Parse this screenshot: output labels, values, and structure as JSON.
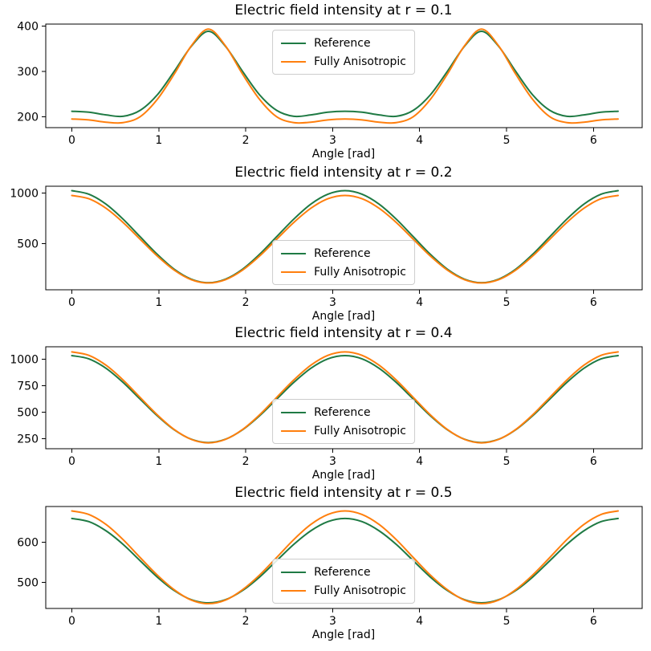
{
  "figure": {
    "background": "#ffffff",
    "xlabel": "Angle [rad]"
  },
  "colors": {
    "reference": "#1f7a44",
    "fully_anisotropic": "#ff7f0e",
    "spine": "#000000",
    "legend_border": "#cccccc"
  },
  "chart_data": [
    {
      "type": "line",
      "title": "Electric field intensity at r = 0.1",
      "xlabel": "Angle [rad]",
      "x": [
        0,
        0.196,
        0.393,
        0.589,
        0.785,
        0.982,
        1.178,
        1.374,
        1.571,
        1.767,
        1.963,
        2.16,
        2.356,
        2.553,
        2.749,
        2.945,
        3.142,
        3.338,
        3.534,
        3.731,
        3.927,
        4.123,
        4.32,
        4.516,
        4.712,
        4.909,
        5.105,
        5.301,
        5.498,
        5.694,
        5.89,
        6.087,
        6.283
      ],
      "series": [
        {
          "name": "Reference",
          "color": "#1f7a44",
          "values": [
            212,
            210,
            204,
            201,
            214,
            248,
            300,
            355,
            388,
            355,
            300,
            248,
            214,
            201,
            204,
            210,
            212,
            210,
            204,
            201,
            214,
            248,
            300,
            355,
            388,
            355,
            300,
            248,
            214,
            201,
            204,
            210,
            212
          ]
        },
        {
          "name": "Fully Anisotropic",
          "color": "#ff7f0e",
          "values": [
            195,
            193,
            188,
            187,
            200,
            238,
            294,
            356,
            393,
            356,
            294,
            238,
            200,
            187,
            188,
            193,
            195,
            193,
            188,
            187,
            200,
            238,
            294,
            356,
            393,
            356,
            294,
            238,
            200,
            187,
            188,
            193,
            195
          ]
        }
      ],
      "xlim": [
        -0.3,
        6.56
      ],
      "ylim": [
        176,
        404
      ],
      "x_ticks": [
        0,
        1,
        2,
        3,
        4,
        5,
        6
      ],
      "y_ticks": [
        200,
        300,
        400
      ],
      "legend_loc": "upper center",
      "grid": false
    },
    {
      "type": "line",
      "title": "Electric field intensity at r = 0.2",
      "xlabel": "Angle [rad]",
      "x": [
        0,
        0.196,
        0.393,
        0.589,
        0.785,
        0.982,
        1.178,
        1.374,
        1.571,
        1.767,
        1.963,
        2.16,
        2.356,
        2.553,
        2.749,
        2.945,
        3.142,
        3.338,
        3.534,
        3.731,
        3.927,
        4.123,
        4.32,
        4.516,
        4.712,
        4.909,
        5.105,
        5.301,
        5.498,
        5.694,
        5.89,
        6.087,
        6.283
      ],
      "series": [
        {
          "name": "Reference",
          "color": "#1f7a44",
          "values": [
            1025,
            990,
            892,
            744,
            570,
            396,
            248,
            150,
            115,
            150,
            248,
            396,
            570,
            744,
            892,
            990,
            1025,
            990,
            892,
            744,
            570,
            396,
            248,
            150,
            115,
            150,
            248,
            396,
            570,
            744,
            892,
            990,
            1025
          ]
        },
        {
          "name": "Fully Anisotropic",
          "color": "#ff7f0e",
          "values": [
            978,
            945,
            851,
            711,
            545,
            379,
            239,
            145,
            112,
            145,
            239,
            379,
            545,
            711,
            851,
            945,
            978,
            945,
            851,
            711,
            545,
            379,
            239,
            145,
            112,
            145,
            239,
            379,
            545,
            711,
            851,
            945,
            978
          ]
        }
      ],
      "xlim": [
        -0.3,
        6.56
      ],
      "ylim": [
        45,
        1069
      ],
      "x_ticks": [
        0,
        1,
        2,
        3,
        4,
        5,
        6
      ],
      "y_ticks": [
        500,
        1000
      ],
      "legend_loc": "lower center",
      "grid": false
    },
    {
      "type": "line",
      "title": "Electric field intensity at r = 0.4",
      "xlabel": "Angle [rad]",
      "x": [
        0,
        0.196,
        0.393,
        0.589,
        0.785,
        0.982,
        1.178,
        1.374,
        1.571,
        1.767,
        1.963,
        2.16,
        2.356,
        2.553,
        2.749,
        2.945,
        3.142,
        3.338,
        3.534,
        3.731,
        3.927,
        4.123,
        4.32,
        4.516,
        4.712,
        4.909,
        5.105,
        5.301,
        5.498,
        5.694,
        5.89,
        6.087,
        6.283
      ],
      "series": [
        {
          "name": "Reference",
          "color": "#1f7a44",
          "values": [
            1035,
            1004,
            915,
            782,
            625,
            468,
            335,
            246,
            215,
            246,
            335,
            468,
            625,
            782,
            915,
            1004,
            1035,
            1004,
            915,
            782,
            625,
            468,
            335,
            246,
            215,
            246,
            335,
            468,
            625,
            782,
            915,
            1004,
            1035
          ]
        },
        {
          "name": "Fully Anisotropic",
          "color": "#ff7f0e",
          "values": [
            1070,
            1037,
            944,
            805,
            641,
            477,
            338,
            245,
            212,
            245,
            338,
            477,
            641,
            805,
            944,
            1037,
            1070,
            1037,
            944,
            805,
            641,
            477,
            338,
            245,
            212,
            245,
            338,
            477,
            641,
            805,
            944,
            1037,
            1070
          ]
        }
      ],
      "xlim": [
        -0.3,
        6.56
      ],
      "ylim": [
        157,
        1118
      ],
      "x_ticks": [
        0,
        1,
        2,
        3,
        4,
        5,
        6
      ],
      "y_ticks": [
        250,
        500,
        750,
        1000
      ],
      "legend_loc": "lower center",
      "grid": false
    },
    {
      "type": "line",
      "title": "Electric field intensity at r = 0.5",
      "xlabel": "Angle [rad]",
      "x": [
        0,
        0.196,
        0.393,
        0.589,
        0.785,
        0.982,
        1.178,
        1.374,
        1.571,
        1.767,
        1.963,
        2.16,
        2.356,
        2.553,
        2.749,
        2.945,
        3.142,
        3.338,
        3.534,
        3.731,
        3.927,
        4.123,
        4.32,
        4.516,
        4.712,
        4.909,
        5.105,
        5.301,
        5.498,
        5.694,
        5.89,
        6.087,
        6.283
      ],
      "series": [
        {
          "name": "Reference",
          "color": "#1f7a44",
          "values": [
            660,
            652,
            629,
            595,
            554,
            513,
            479,
            456,
            448,
            456,
            479,
            513,
            554,
            595,
            629,
            652,
            660,
            652,
            629,
            595,
            554,
            513,
            479,
            456,
            448,
            456,
            479,
            513,
            554,
            595,
            629,
            652,
            660
          ]
        },
        {
          "name": "Fully Anisotropic",
          "color": "#ff7f0e",
          "values": [
            679,
            670,
            645,
            607,
            562,
            518,
            481,
            455,
            446,
            455,
            481,
            518,
            562,
            607,
            645,
            670,
            679,
            670,
            645,
            607,
            562,
            518,
            481,
            455,
            446,
            455,
            481,
            518,
            562,
            607,
            645,
            670,
            679
          ]
        }
      ],
      "xlim": [
        -0.3,
        6.56
      ],
      "ylim": [
        434,
        690
      ],
      "x_ticks": [
        0,
        1,
        2,
        3,
        4,
        5,
        6
      ],
      "y_ticks": [
        500,
        600
      ],
      "legend_loc": "lower center",
      "grid": false
    }
  ]
}
